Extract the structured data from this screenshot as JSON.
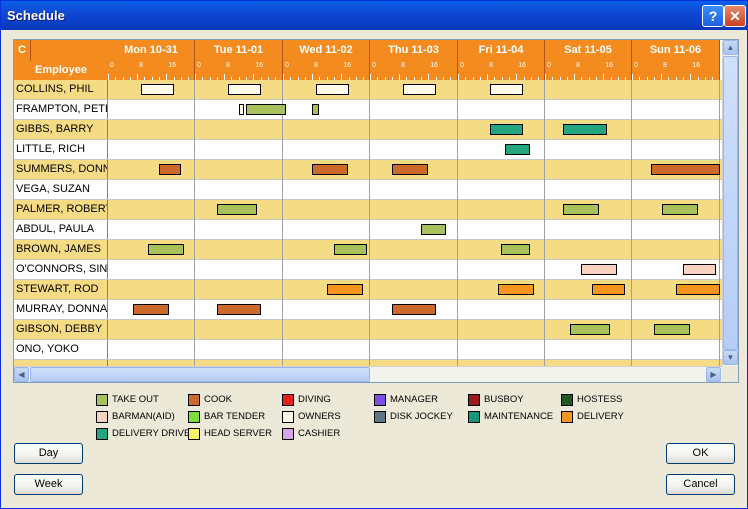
{
  "window": {
    "title": "Schedule",
    "help": "?",
    "close": "✕"
  },
  "grid": {
    "corner_label": "C",
    "employee_header": "Employee",
    "days": [
      "Mon 10-31",
      "Tue 11-01",
      "Wed 11-02",
      "Thu 11-03",
      "Fri 11-04",
      "Sat 11-05",
      "Sun 11-06"
    ],
    "scale_labels": [
      "0",
      "8",
      "16"
    ],
    "employees": [
      "COLLINS, PHIL",
      "FRAMPTON, PETER",
      "GIBBS, BARRY",
      "LITTLE, RICH",
      "SUMMERS, DONNA",
      "VEGA, SUZAN",
      "PALMER, ROBERT",
      "ABDUL, PAULA",
      "BROWN, JAMES",
      "O'CONNORS, SINEAD",
      "STEWART, ROD",
      "MURRAY, DONNA",
      "GIBSON, DEBBY",
      "ONO, YOKO",
      ""
    ],
    "shifts": [
      {
        "emp": 0,
        "day": 0,
        "start": 9,
        "end": 18,
        "role": "owners"
      },
      {
        "emp": 0,
        "day": 1,
        "start": 9,
        "end": 18,
        "role": "owners"
      },
      {
        "emp": 0,
        "day": 2,
        "start": 9,
        "end": 18,
        "role": "owners"
      },
      {
        "emp": 0,
        "day": 3,
        "start": 9,
        "end": 18,
        "role": "owners"
      },
      {
        "emp": 0,
        "day": 4,
        "start": 9,
        "end": 18,
        "role": "owners"
      },
      {
        "emp": 1,
        "day": 1,
        "start": 12,
        "end": 13,
        "role": "owners"
      },
      {
        "emp": 1,
        "day": 1,
        "start": 14,
        "end": 25,
        "role": "take_out"
      },
      {
        "emp": 1,
        "day": 2,
        "start": 8,
        "end": 10,
        "role": "take_out"
      },
      {
        "emp": 2,
        "day": 4,
        "start": 9,
        "end": 18,
        "role": "delivery_driver"
      },
      {
        "emp": 2,
        "day": 5,
        "start": 5,
        "end": 17,
        "role": "delivery_driver"
      },
      {
        "emp": 3,
        "day": 4,
        "start": 13,
        "end": 20,
        "role": "delivery_driver"
      },
      {
        "emp": 4,
        "day": 0,
        "start": 14,
        "end": 20,
        "role": "cook"
      },
      {
        "emp": 4,
        "day": 2,
        "start": 8,
        "end": 18,
        "role": "cook"
      },
      {
        "emp": 4,
        "day": 3,
        "start": 6,
        "end": 16,
        "role": "cook"
      },
      {
        "emp": 4,
        "day": 6,
        "start": 5,
        "end": 24,
        "role": "cook"
      },
      {
        "emp": 6,
        "day": 1,
        "start": 6,
        "end": 17,
        "role": "take_out"
      },
      {
        "emp": 6,
        "day": 5,
        "start": 5,
        "end": 15,
        "role": "take_out"
      },
      {
        "emp": 6,
        "day": 6,
        "start": 8,
        "end": 18,
        "role": "take_out"
      },
      {
        "emp": 7,
        "day": 3,
        "start": 14,
        "end": 21,
        "role": "take_out"
      },
      {
        "emp": 8,
        "day": 0,
        "start": 11,
        "end": 21,
        "role": "take_out"
      },
      {
        "emp": 8,
        "day": 2,
        "start": 14,
        "end": 23,
        "role": "take_out"
      },
      {
        "emp": 8,
        "day": 4,
        "start": 12,
        "end": 20,
        "role": "take_out"
      },
      {
        "emp": 9,
        "day": 5,
        "start": 10,
        "end": 20,
        "role": "barman_aid"
      },
      {
        "emp": 9,
        "day": 6,
        "start": 14,
        "end": 23,
        "role": "barman_aid"
      },
      {
        "emp": 10,
        "day": 2,
        "start": 12,
        "end": 22,
        "role": "delivery"
      },
      {
        "emp": 10,
        "day": 4,
        "start": 11,
        "end": 21,
        "role": "delivery"
      },
      {
        "emp": 10,
        "day": 5,
        "start": 13,
        "end": 22,
        "role": "delivery"
      },
      {
        "emp": 10,
        "day": 6,
        "start": 12,
        "end": 24,
        "role": "delivery"
      },
      {
        "emp": 11,
        "day": 0,
        "start": 7,
        "end": 17,
        "role": "cook"
      },
      {
        "emp": 11,
        "day": 1,
        "start": 6,
        "end": 18,
        "role": "cook"
      },
      {
        "emp": 11,
        "day": 3,
        "start": 6,
        "end": 18,
        "role": "cook"
      },
      {
        "emp": 12,
        "day": 5,
        "start": 7,
        "end": 18,
        "role": "take_out"
      },
      {
        "emp": 12,
        "day": 6,
        "start": 6,
        "end": 16,
        "role": "take_out"
      }
    ]
  },
  "legend": [
    {
      "key": "take_out",
      "label": "TAKE OUT",
      "color": "#A9C15A"
    },
    {
      "key": "cook",
      "label": "COOK",
      "color": "#CD6A2A"
    },
    {
      "key": "diving",
      "label": "DIVING",
      "color": "#E8201A"
    },
    {
      "key": "manager",
      "label": "MANAGER",
      "color": "#7B4DE0"
    },
    {
      "key": "busboy",
      "label": "BUSBOY",
      "color": "#9A1A1A"
    },
    {
      "key": "hostess",
      "label": "HOSTESS",
      "color": "#1E5A22"
    },
    {
      "key": "barman_aid",
      "label": "BARMAN(AID)",
      "color": "#F9D3C0"
    },
    {
      "key": "bar_tender",
      "label": "BAR TENDER",
      "color": "#7DE03A"
    },
    {
      "key": "owners",
      "label": "OWNERS",
      "color": "#FFFBE8"
    },
    {
      "key": "disk_jockey",
      "label": "DISK JOCKEY",
      "color": "#5E7788"
    },
    {
      "key": "maintenance",
      "label": "MAINTENANCE",
      "color": "#17977A"
    },
    {
      "key": "delivery",
      "label": "DELIVERY",
      "color": "#F5941E"
    },
    {
      "key": "delivery_driver",
      "label": "DELIVERY DRIVER",
      "color": "#23A67F"
    },
    {
      "key": "head_server",
      "label": "HEAD SERVER",
      "color": "#FAF26A"
    },
    {
      "key": "cashier",
      "label": "CASHIER",
      "color": "#D8A3EC"
    }
  ],
  "buttons": {
    "day": "Day",
    "week": "Week",
    "ok": "OK",
    "cancel": "Cancel"
  }
}
